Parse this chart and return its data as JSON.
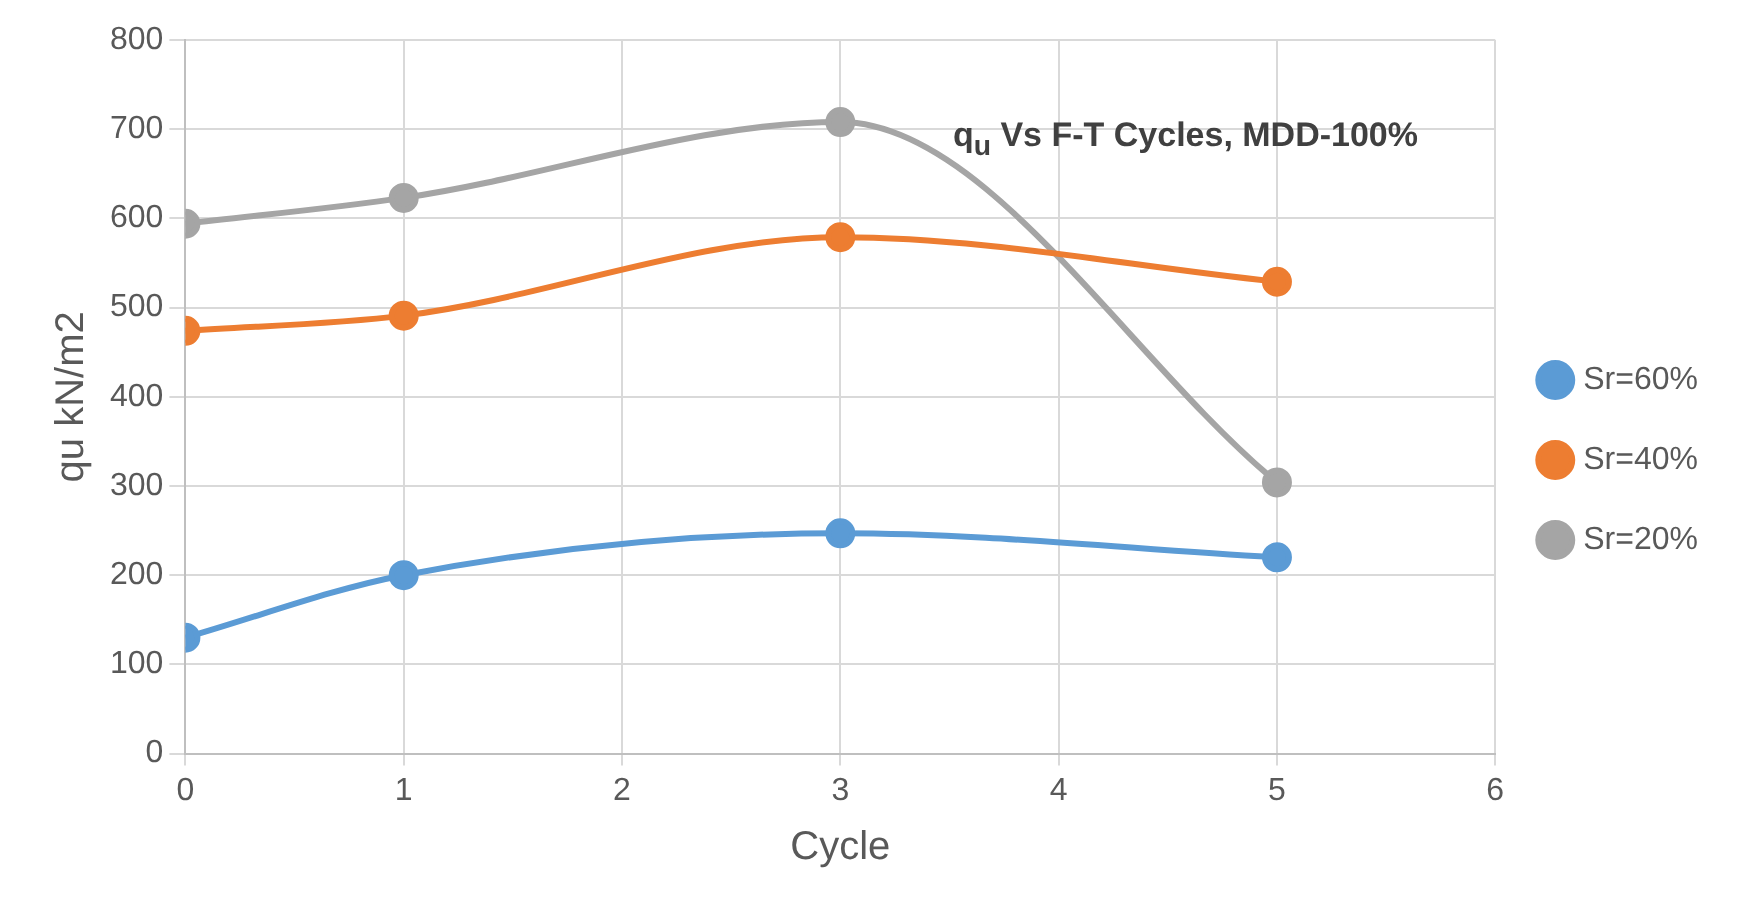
{
  "chart_data": {
    "type": "line",
    "title": "q$_{u}$ Vs  F-T Cycles, MDD-100%",
    "xlabel": "Cycle",
    "ylabel": "qu kN/m2",
    "x": [
      0,
      1,
      3,
      5
    ],
    "series": [
      {
        "name": "Sr=60%",
        "color": "#5b9bd5",
        "values": [
          130,
          200,
          247,
          220
        ]
      },
      {
        "name": "Sr=40%",
        "color": "#ed7d31",
        "values": [
          474,
          491,
          579,
          529
        ]
      },
      {
        "name": "Sr=20%",
        "color": "#a5a5a5",
        "values": [
          594,
          623,
          708,
          304
        ]
      }
    ],
    "xlim": [
      0,
      6
    ],
    "xticks": [
      0,
      1,
      2,
      3,
      4,
      5,
      6
    ],
    "ylim": [
      0,
      800
    ],
    "yticks": [
      0,
      100,
      200,
      300,
      400,
      500,
      600,
      700,
      800
    ],
    "grid": true,
    "legend": "right",
    "marker": "circle",
    "line_style": "solid"
  }
}
